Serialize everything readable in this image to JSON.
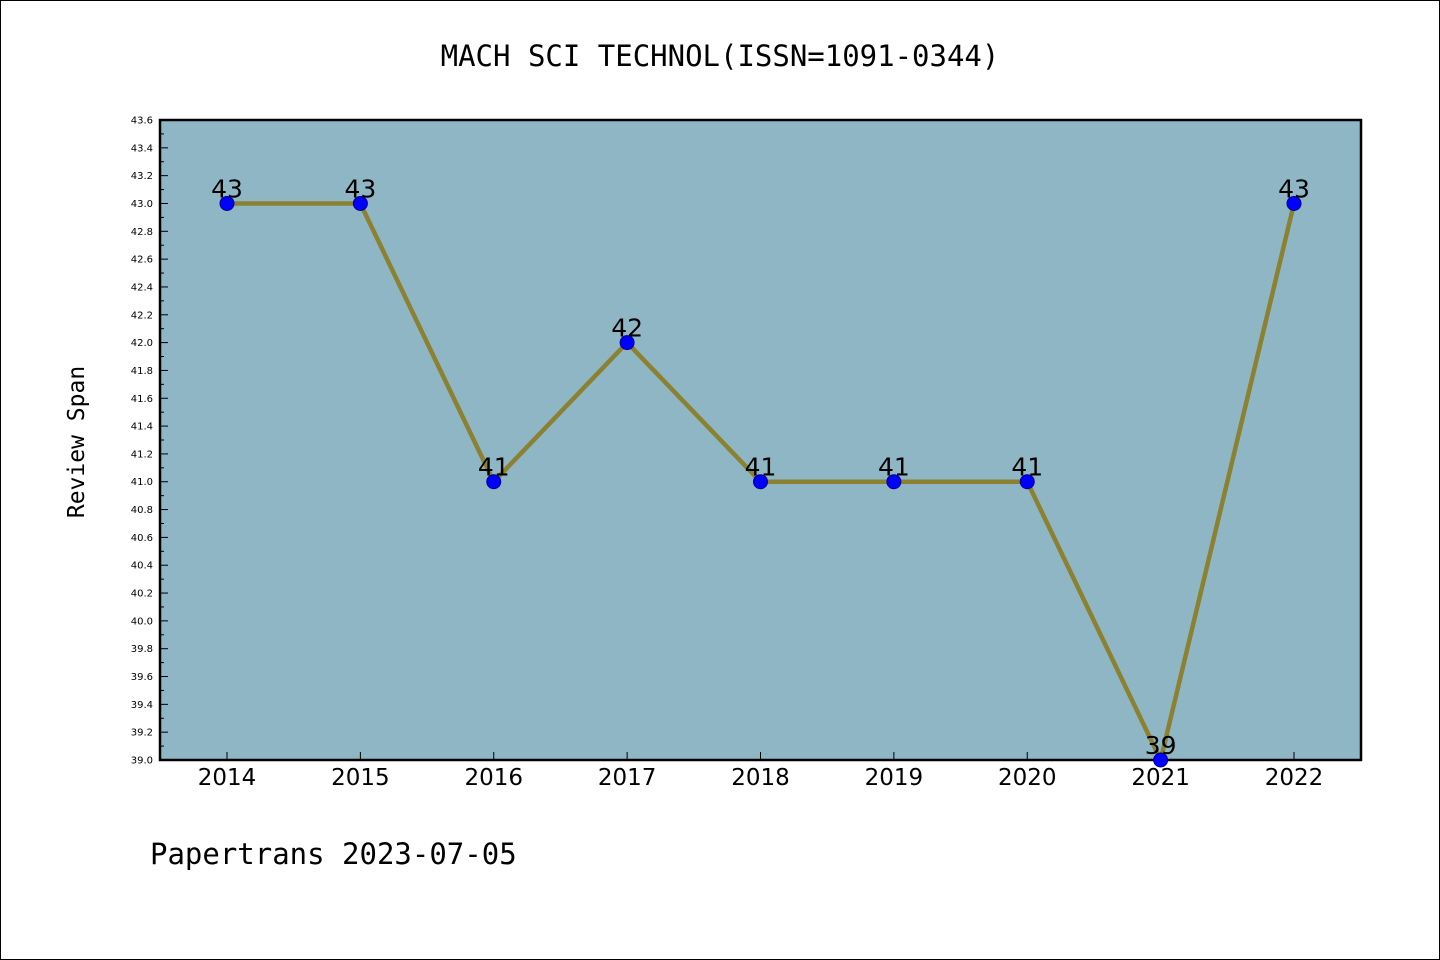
{
  "chart_data": {
    "type": "line",
    "title": "MACH SCI TECHNOL(ISSN=1091-0344)",
    "xlabel": "",
    "ylabel": "Review Span",
    "x": [
      "2014",
      "2015",
      "2016",
      "2017",
      "2018",
      "2019",
      "2020",
      "2021",
      "2022"
    ],
    "series": [
      {
        "values": [
          43,
          43,
          41,
          42,
          41,
          41,
          41,
          39,
          43
        ]
      }
    ],
    "data_labels": [
      "43",
      "43",
      "41",
      "42",
      "41",
      "41",
      "41",
      "39",
      "43"
    ],
    "ylim": [
      39.0,
      43.6
    ],
    "yticks": [
      "39.0",
      "39.2",
      "39.4",
      "39.6",
      "39.8",
      "40.0",
      "40.2",
      "40.4",
      "40.6",
      "40.8",
      "41.0",
      "41.2",
      "41.4",
      "41.6",
      "41.8",
      "42.0",
      "42.2",
      "42.4",
      "42.6",
      "42.8",
      "43.0",
      "43.2",
      "43.4",
      "43.6"
    ],
    "grid": false,
    "legend": "none",
    "colors": {
      "plot_background": "#8fb6c4",
      "line": "#8b8131",
      "marker": "#0000ff",
      "marker_edge": "#00008b"
    }
  },
  "footer": {
    "text": "Papertrans 2023-07-05"
  }
}
